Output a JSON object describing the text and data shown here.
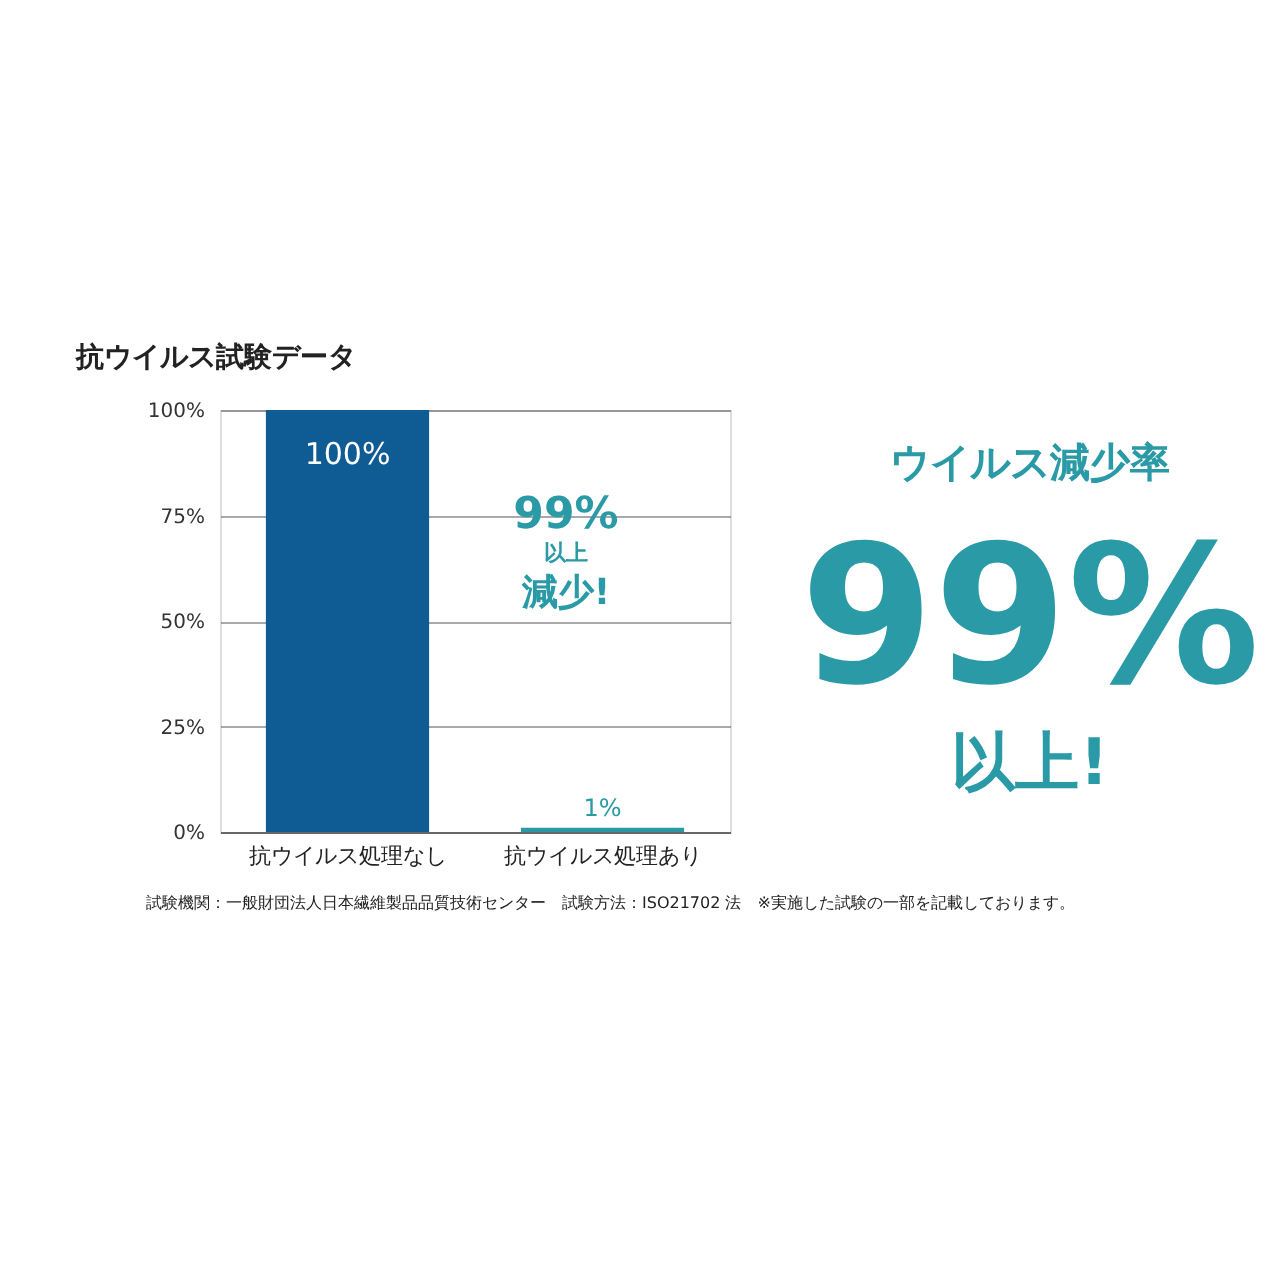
{
  "chart_data": {
    "type": "bar",
    "title": "抗ウイルス試験データ",
    "categories": [
      "抗ウイルス処理なし",
      "抗ウイルス処理あり"
    ],
    "values": [
      100,
      1
    ],
    "colors": [
      "#0f5b94",
      "#2a9aa6"
    ],
    "value_labels": [
      "100%",
      "1%"
    ],
    "ylim": [
      0,
      100
    ],
    "yticks": [
      {
        "value": 0,
        "label": "0%"
      },
      {
        "value": 25,
        "label": "25%"
      },
      {
        "value": 50,
        "label": "50%"
      },
      {
        "value": 75,
        "label": "75%"
      },
      {
        "value": 100,
        "label": "100%"
      }
    ],
    "grid": "y",
    "annotations": [
      "99%",
      "以上",
      "減少!",
      "ウイルス減少率",
      "99%",
      "以上!",
      "試験機関：一般財団法人日本繊維製品品質技術センター　試験方法：ISO21702 法　※実施した試験の一部を記載しております。"
    ]
  }
}
